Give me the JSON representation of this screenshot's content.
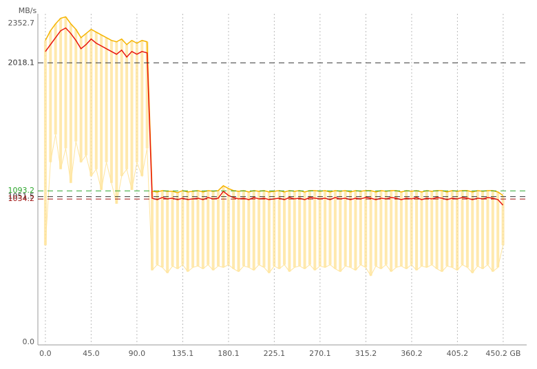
{
  "chart_data": {
    "type": "line",
    "y_label": "MB/s",
    "x": [
      0,
      5,
      10,
      15,
      20,
      25,
      30,
      35,
      40,
      45,
      50,
      55,
      60,
      65,
      70,
      75,
      80,
      85,
      90,
      95,
      100,
      105,
      110,
      115,
      120,
      125,
      130,
      135,
      140,
      145,
      150,
      155,
      160,
      165,
      170,
      175,
      180,
      185,
      190,
      195,
      200,
      205,
      210,
      215,
      220,
      225,
      230,
      235,
      240,
      245,
      250,
      255,
      260,
      265,
      270,
      275,
      280,
      285,
      290,
      295,
      300,
      305,
      310,
      315,
      320,
      325,
      330,
      335,
      340,
      345,
      350,
      355,
      360,
      365,
      370,
      375,
      380,
      385,
      390,
      395,
      400,
      405,
      410,
      415,
      420,
      425,
      430,
      435,
      440,
      445,
      450
    ],
    "series": [
      {
        "color": "#e8150c",
        "values": [
          2100,
          2150,
          2200,
          2250,
          2270,
          2230,
          2180,
          2120,
          2150,
          2190,
          2160,
          2140,
          2120,
          2100,
          2080,
          2110,
          2060,
          2100,
          2080,
          2100,
          2090,
          1040,
          1030,
          1045,
          1035,
          1040,
          1030,
          1040,
          1030,
          1035,
          1040,
          1030,
          1045,
          1035,
          1040,
          1090,
          1060,
          1045,
          1035,
          1040,
          1030,
          1045,
          1035,
          1040,
          1030,
          1035,
          1040,
          1030,
          1045,
          1035,
          1040,
          1030,
          1045,
          1040,
          1035,
          1040,
          1030,
          1045,
          1035,
          1040,
          1030,
          1040,
          1035,
          1045,
          1040,
          1030,
          1040,
          1035,
          1045,
          1040,
          1030,
          1040,
          1035,
          1045,
          1030,
          1040,
          1035,
          1045,
          1040,
          1030,
          1040,
          1035,
          1045,
          1040,
          1030,
          1040,
          1035,
          1045,
          1040,
          1030,
          990
        ]
      },
      {
        "color": "#f5b400",
        "values": [
          2180,
          2250,
          2300,
          2340,
          2350,
          2300,
          2260,
          2200,
          2230,
          2260,
          2240,
          2220,
          2200,
          2180,
          2170,
          2190,
          2150,
          2180,
          2160,
          2180,
          2170,
          1090,
          1085,
          1095,
          1090,
          1090,
          1080,
          1095,
          1085,
          1090,
          1095,
          1085,
          1095,
          1090,
          1095,
          1130,
          1110,
          1095,
          1090,
          1095,
          1085,
          1095,
          1090,
          1095,
          1085,
          1090,
          1095,
          1085,
          1095,
          1090,
          1095,
          1085,
          1095,
          1095,
          1090,
          1095,
          1085,
          1095,
          1090,
          1095,
          1085,
          1095,
          1090,
          1095,
          1095,
          1085,
          1095,
          1090,
          1095,
          1095,
          1085,
          1095,
          1090,
          1095,
          1085,
          1095,
          1090,
          1095,
          1095,
          1085,
          1095,
          1090,
          1095,
          1095,
          1085,
          1095,
          1090,
          1095,
          1095,
          1085,
          1060
        ]
      },
      {
        "color": "#ffe49a",
        "values": [
          700,
          1300,
          1500,
          1250,
          1400,
          1150,
          1450,
          1300,
          1350,
          1200,
          1250,
          1100,
          1300,
          1150,
          1000,
          1200,
          1250,
          1100,
          1300,
          1200,
          1400,
          520,
          560,
          540,
          500,
          550,
          530,
          560,
          510,
          540,
          550,
          530,
          560,
          520,
          550,
          540,
          560,
          530,
          510,
          550,
          540,
          520,
          560,
          540,
          500,
          550,
          530,
          560,
          510,
          540,
          550,
          530,
          560,
          520,
          550,
          540,
          560,
          530,
          510,
          550,
          540,
          520,
          560,
          540,
          480,
          550,
          530,
          560,
          510,
          540,
          550,
          530,
          560,
          520,
          550,
          540,
          560,
          530,
          510,
          550,
          540,
          520,
          560,
          540,
          500,
          550,
          530,
          560,
          510,
          540,
          700
        ]
      }
    ],
    "xlim": [
      -7.4,
      473.3
    ],
    "ylim": [
      0,
      2352.7
    ],
    "xticks": [
      {
        "value": 0,
        "label": "0.0"
      },
      {
        "value": 45,
        "label": "45.0"
      },
      {
        "value": 90,
        "label": "90.0"
      },
      135.1,
      180.1,
      225.1,
      270.1,
      315.2,
      360.2,
      405.2,
      {
        "value": 450.2,
        "label": "450.2 GB"
      }
    ],
    "yticks": [
      {
        "value": 0,
        "label": "0.0"
      },
      2352.7
    ],
    "reference_lines": [
      {
        "value": 2018.1,
        "color": "#333333"
      },
      {
        "value": 1093.2,
        "color": "#2aa52a"
      },
      {
        "value": 1051.5,
        "color": "#333333"
      },
      {
        "value": 1034.2,
        "color": "#a01010"
      }
    ],
    "grid": true
  }
}
